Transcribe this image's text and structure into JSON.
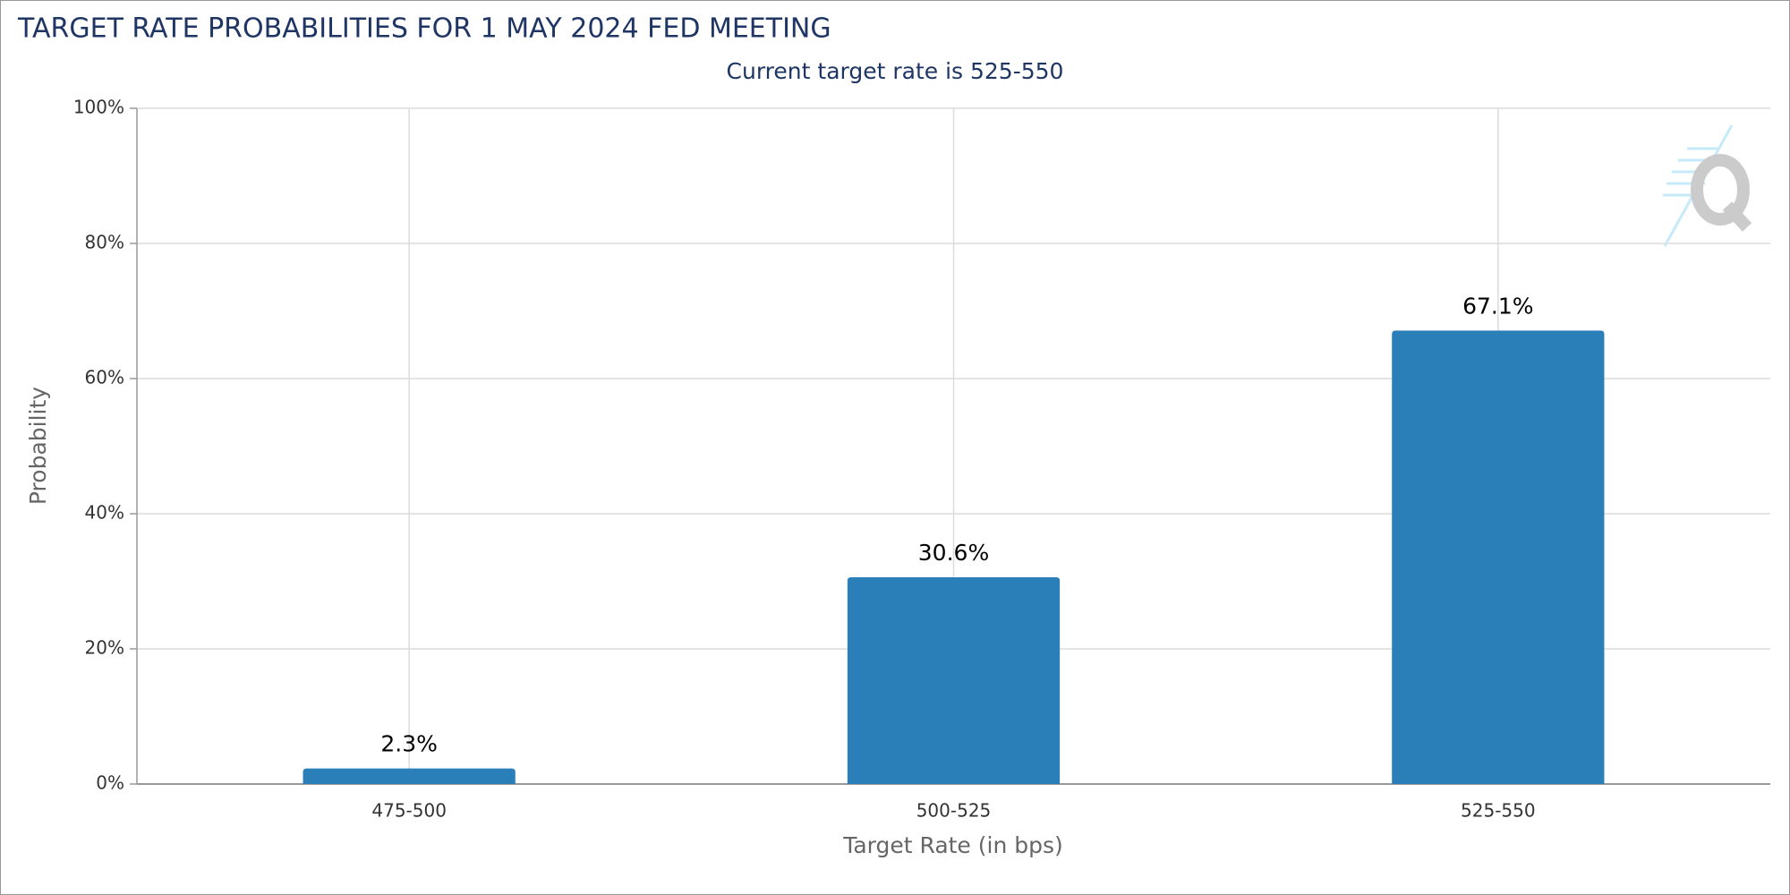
{
  "chart_data": {
    "type": "bar",
    "title": "TARGET RATE PROBABILITIES FOR 1 MAY 2024 FED MEETING",
    "subtitle": "Current target rate is 525-550",
    "x_label": "Target Rate (in bps)",
    "y_label": "Probability",
    "categories": [
      "475-500",
      "500-525",
      "525-550"
    ],
    "values": [
      2.3,
      30.6,
      67.1
    ],
    "value_labels": [
      "2.3%",
      "30.6%",
      "67.1%"
    ],
    "color": "#2a7fb8",
    "ylim": [
      0,
      100
    ],
    "yticks": [
      {
        "value": 0,
        "label": "0%"
      },
      {
        "value": 20,
        "label": "20%"
      },
      {
        "value": 40,
        "label": "40%"
      },
      {
        "value": 60,
        "label": "60%"
      },
      {
        "value": 80,
        "label": "80%"
      },
      {
        "value": 100,
        "label": "100%"
      }
    ],
    "grid": true
  }
}
